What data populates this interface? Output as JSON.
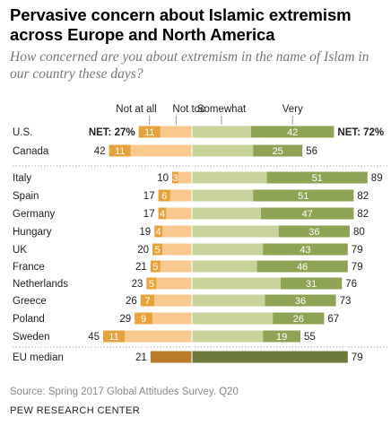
{
  "header": {
    "title": "Pervasive concern about Islamic extremism across Europe and North America",
    "subtitle": "How concerned are you about extremism in the name of Islam in our country these days?"
  },
  "footer": {
    "source": "Source: Spring 2017 Global Attitudes Survey. Q20",
    "brand": "PEW RESEARCH CENTER"
  },
  "chart_data": {
    "type": "bar",
    "stacked": "diverging",
    "legend": [
      "Not at all",
      "Not too",
      "Somewhat",
      "Very"
    ],
    "colors": {
      "not_at_all": "#e8a23c",
      "not_too": "#f7c98f",
      "somewhat": "#c7d39a",
      "very": "#8fa355",
      "eu_not": "#bb7a2a",
      "eu_very": "#6b7a3a"
    },
    "rows": [
      {
        "label": "U.S.",
        "not_at_all": 11,
        "not_too": 16,
        "somewhat": 30,
        "very": 42,
        "net_not": 27,
        "net_concerned": 72,
        "net_not_label": "NET: 27%",
        "net_concerned_label": "NET: 72%",
        "group": "north_america"
      },
      {
        "label": "Canada",
        "not_at_all": 11,
        "not_too": 31,
        "somewhat": 31,
        "very": 25,
        "net_not": 42,
        "net_concerned": 56,
        "net_not_label": "42",
        "net_concerned_label": "56",
        "group": "north_america"
      },
      {
        "label": "Italy",
        "not_at_all": 3,
        "not_too": 7,
        "somewhat": 38,
        "very": 51,
        "net_not": 10,
        "net_concerned": 89,
        "net_not_label": "10",
        "net_concerned_label": "89",
        "group": "europe"
      },
      {
        "label": "Spain",
        "not_at_all": 6,
        "not_too": 11,
        "somewhat": 31,
        "very": 51,
        "net_not": 17,
        "net_concerned": 82,
        "net_not_label": "17",
        "net_concerned_label": "82",
        "group": "europe"
      },
      {
        "label": "Germany",
        "not_at_all": 4,
        "not_too": 13,
        "somewhat": 35,
        "very": 47,
        "net_not": 17,
        "net_concerned": 82,
        "net_not_label": "17",
        "net_concerned_label": "82",
        "group": "europe"
      },
      {
        "label": "Hungary",
        "not_at_all": 4,
        "not_too": 15,
        "somewhat": 44,
        "very": 36,
        "net_not": 19,
        "net_concerned": 80,
        "net_not_label": "19",
        "net_concerned_label": "80",
        "group": "europe"
      },
      {
        "label": "UK",
        "not_at_all": 5,
        "not_too": 15,
        "somewhat": 36,
        "very": 43,
        "net_not": 20,
        "net_concerned": 79,
        "net_not_label": "20",
        "net_concerned_label": "79",
        "group": "europe"
      },
      {
        "label": "France",
        "not_at_all": 5,
        "not_too": 16,
        "somewhat": 33,
        "very": 46,
        "net_not": 21,
        "net_concerned": 79,
        "net_not_label": "21",
        "net_concerned_label": "79",
        "group": "europe"
      },
      {
        "label": "Netherlands",
        "not_at_all": 5,
        "not_too": 18,
        "somewhat": 45,
        "very": 31,
        "net_not": 23,
        "net_concerned": 76,
        "net_not_label": "23",
        "net_concerned_label": "76",
        "group": "europe"
      },
      {
        "label": "Greece",
        "not_at_all": 7,
        "not_too": 19,
        "somewhat": 37,
        "very": 36,
        "net_not": 26,
        "net_concerned": 73,
        "net_not_label": "26",
        "net_concerned_label": "73",
        "group": "europe"
      },
      {
        "label": "Poland",
        "not_at_all": 9,
        "not_too": 20,
        "somewhat": 41,
        "very": 26,
        "net_not": 29,
        "net_concerned": 67,
        "net_not_label": "29",
        "net_concerned_label": "67",
        "group": "europe"
      },
      {
        "label": "Sweden",
        "not_at_all": 11,
        "not_too": 34,
        "somewhat": 36,
        "very": 19,
        "net_not": 45,
        "net_concerned": 55,
        "net_not_label": "45",
        "net_concerned_label": "55",
        "group": "europe"
      },
      {
        "label": "EU median",
        "net_not": 21,
        "net_concerned": 79,
        "net_not_label": "21",
        "net_concerned_label": "79",
        "group": "median"
      }
    ]
  }
}
